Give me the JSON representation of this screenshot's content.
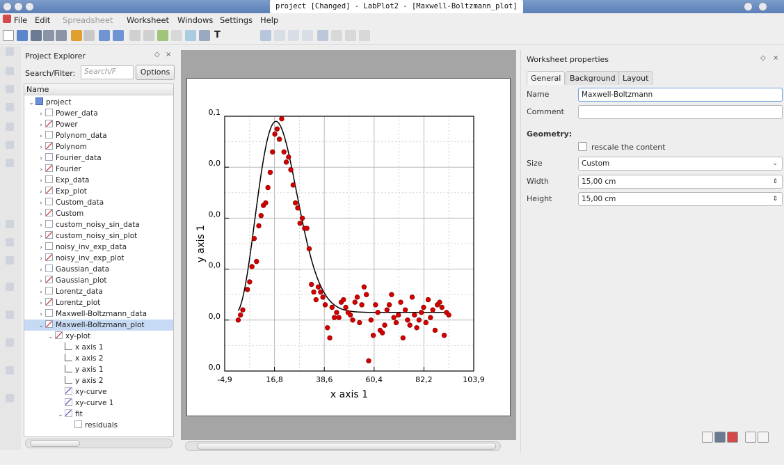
{
  "window": {
    "title": "project    [Changed] - LabPlot2 - [Maxwell-Boltzmann_plot]"
  },
  "menu": [
    "File",
    "Edit",
    "Spreadsheet",
    "Worksheet",
    "Windows",
    "Settings",
    "Help"
  ],
  "explorer": {
    "title": "Project Explorer",
    "filter_label": "Search/Filter:",
    "filter_placeholder": "Search/F",
    "options_label": "Options",
    "column_header": "Name",
    "items": [
      {
        "label": "project",
        "type": "folder",
        "level": 0
      },
      {
        "label": "Power_data",
        "type": "sheet",
        "level": 1
      },
      {
        "label": "Power",
        "type": "work",
        "level": 1
      },
      {
        "label": "Polynom_data",
        "type": "sheet",
        "level": 1
      },
      {
        "label": "Polynom",
        "type": "work",
        "level": 1
      },
      {
        "label": "Fourier_data",
        "type": "sheet",
        "level": 1
      },
      {
        "label": "Fourier",
        "type": "work",
        "level": 1
      },
      {
        "label": "Exp_data",
        "type": "sheet",
        "level": 1
      },
      {
        "label": "Exp_plot",
        "type": "work",
        "level": 1
      },
      {
        "label": "Custom_data",
        "type": "sheet",
        "level": 1
      },
      {
        "label": "Custom",
        "type": "work",
        "level": 1
      },
      {
        "label": "custom_noisy_sin_data",
        "type": "sheet",
        "level": 1
      },
      {
        "label": "custom_noisy_sin_plot",
        "type": "work",
        "level": 1
      },
      {
        "label": "noisy_inv_exp_data",
        "type": "sheet",
        "level": 1
      },
      {
        "label": "noisy_inv_exp_plot",
        "type": "work",
        "level": 1
      },
      {
        "label": "Gaussian_data",
        "type": "sheet",
        "level": 1
      },
      {
        "label": "Gaussian_plot",
        "type": "work",
        "level": 1
      },
      {
        "label": "Lorentz_data",
        "type": "sheet",
        "level": 1
      },
      {
        "label": "Lorentz_plot",
        "type": "work",
        "level": 1
      },
      {
        "label": "Maxwell-Boltzmann_data",
        "type": "sheet",
        "level": 1
      },
      {
        "label": "Maxwell-Boltzmann_plot",
        "type": "work",
        "level": 1,
        "selected": true
      },
      {
        "label": "xy-plot",
        "type": "work",
        "level": 2
      },
      {
        "label": "x axis 1",
        "type": "axis",
        "level": 3
      },
      {
        "label": "x axis 2",
        "type": "axis",
        "level": 3
      },
      {
        "label": "y axis 1",
        "type": "axis",
        "level": 3
      },
      {
        "label": "y axis 2",
        "type": "axis",
        "level": 3
      },
      {
        "label": "xy-curve",
        "type": "curve",
        "level": 3
      },
      {
        "label": "xy-curve 1",
        "type": "curve",
        "level": 3
      },
      {
        "label": "fit",
        "type": "curve",
        "level": 3
      },
      {
        "label": "residuals",
        "type": "sheet",
        "level": 4
      }
    ]
  },
  "properties": {
    "title": "Worksheet properties",
    "tabs": [
      "General",
      "Background",
      "Layout"
    ],
    "name_label": "Name",
    "name_value": "Maxwell-Boltzmann",
    "comment_label": "Comment",
    "comment_value": "",
    "geometry_label": "Geometry:",
    "rescale_label": "rescale the content",
    "size_label": "Size",
    "size_value": "Custom",
    "width_label": "Width",
    "width_value": "15,00 cm",
    "height_label": "Height",
    "height_value": "15,00 cm"
  },
  "chart_data": {
    "type": "scatter",
    "xlabel": "x axis 1",
    "ylabel": "y axis 1",
    "x_ticks": [
      "-4,9",
      "16,8",
      "38,6",
      "60,4",
      "82,2",
      "103,9"
    ],
    "y_ticks": [
      "0,0",
      "0,0",
      "0,0",
      "0,0",
      "0,0",
      "0,1"
    ],
    "xlim": [
      -4.9,
      103.9
    ],
    "ylim": [
      0,
      0.1
    ],
    "grid": true,
    "marker_color": "#d40000",
    "line_color": "#000000",
    "points": [
      [
        1,
        0.02
      ],
      [
        2,
        0.022
      ],
      [
        3,
        0.024
      ],
      [
        5,
        0.032
      ],
      [
        6,
        0.035
      ],
      [
        7,
        0.041
      ],
      [
        8,
        0.052
      ],
      [
        9,
        0.043
      ],
      [
        10,
        0.057
      ],
      [
        11,
        0.061
      ],
      [
        12,
        0.065
      ],
      [
        13,
        0.066
      ],
      [
        14,
        0.072
      ],
      [
        15,
        0.078
      ],
      [
        16,
        0.086
      ],
      [
        17,
        0.093
      ],
      [
        18,
        0.095
      ],
      [
        19,
        0.091
      ],
      [
        20,
        0.099
      ],
      [
        21,
        0.086
      ],
      [
        22,
        0.082
      ],
      [
        23,
        0.084
      ],
      [
        24,
        0.079
      ],
      [
        25,
        0.073
      ],
      [
        26,
        0.066
      ],
      [
        27,
        0.064
      ],
      [
        28,
        0.058
      ],
      [
        29,
        0.06
      ],
      [
        30,
        0.056
      ],
      [
        31,
        0.056
      ],
      [
        32,
        0.048
      ],
      [
        33,
        0.034
      ],
      [
        34,
        0.031
      ],
      [
        35,
        0.028
      ],
      [
        36,
        0.033
      ],
      [
        37,
        0.031
      ],
      [
        38,
        0.029
      ],
      [
        39,
        0.026
      ],
      [
        40,
        0.017
      ],
      [
        41,
        0.013
      ],
      [
        42,
        0.025
      ],
      [
        43,
        0.021
      ],
      [
        44,
        0.023
      ],
      [
        45,
        0.021
      ],
      [
        46,
        0.027
      ],
      [
        47,
        0.028
      ],
      [
        48,
        0.025
      ],
      [
        49,
        0.023
      ],
      [
        50,
        0.022
      ],
      [
        51,
        0.02
      ],
      [
        52,
        0.027
      ],
      [
        53,
        0.029
      ],
      [
        54,
        0.019
      ],
      [
        55,
        0.026
      ],
      [
        56,
        0.033
      ],
      [
        57,
        0.03
      ],
      [
        58,
        0.004
      ],
      [
        59,
        0.02
      ],
      [
        60,
        0.014
      ],
      [
        61,
        0.026
      ],
      [
        62,
        0.023
      ],
      [
        63,
        0.016
      ],
      [
        64,
        0.015
      ],
      [
        65,
        0.018
      ],
      [
        66,
        0.024
      ],
      [
        67,
        0.026
      ],
      [
        68,
        0.03
      ],
      [
        69,
        0.021
      ],
      [
        70,
        0.019
      ],
      [
        71,
        0.022
      ],
      [
        72,
        0.027
      ],
      [
        73,
        0.013
      ],
      [
        74,
        0.024
      ],
      [
        75,
        0.02
      ],
      [
        76,
        0.018
      ],
      [
        77,
        0.029
      ],
      [
        78,
        0.022
      ],
      [
        79,
        0.017
      ],
      [
        80,
        0.02
      ],
      [
        81,
        0.023
      ],
      [
        82,
        0.025
      ],
      [
        83,
        0.019
      ],
      [
        84,
        0.028
      ],
      [
        85,
        0.021
      ],
      [
        86,
        0.024
      ],
      [
        87,
        0.016
      ],
      [
        88,
        0.026
      ],
      [
        89,
        0.027
      ],
      [
        90,
        0.025
      ],
      [
        91,
        0.014
      ],
      [
        92,
        0.023
      ],
      [
        93,
        0.022
      ]
    ],
    "fit": {
      "amplitude": 0.098,
      "peak_x": 17.5,
      "baseline": 0.023
    }
  }
}
